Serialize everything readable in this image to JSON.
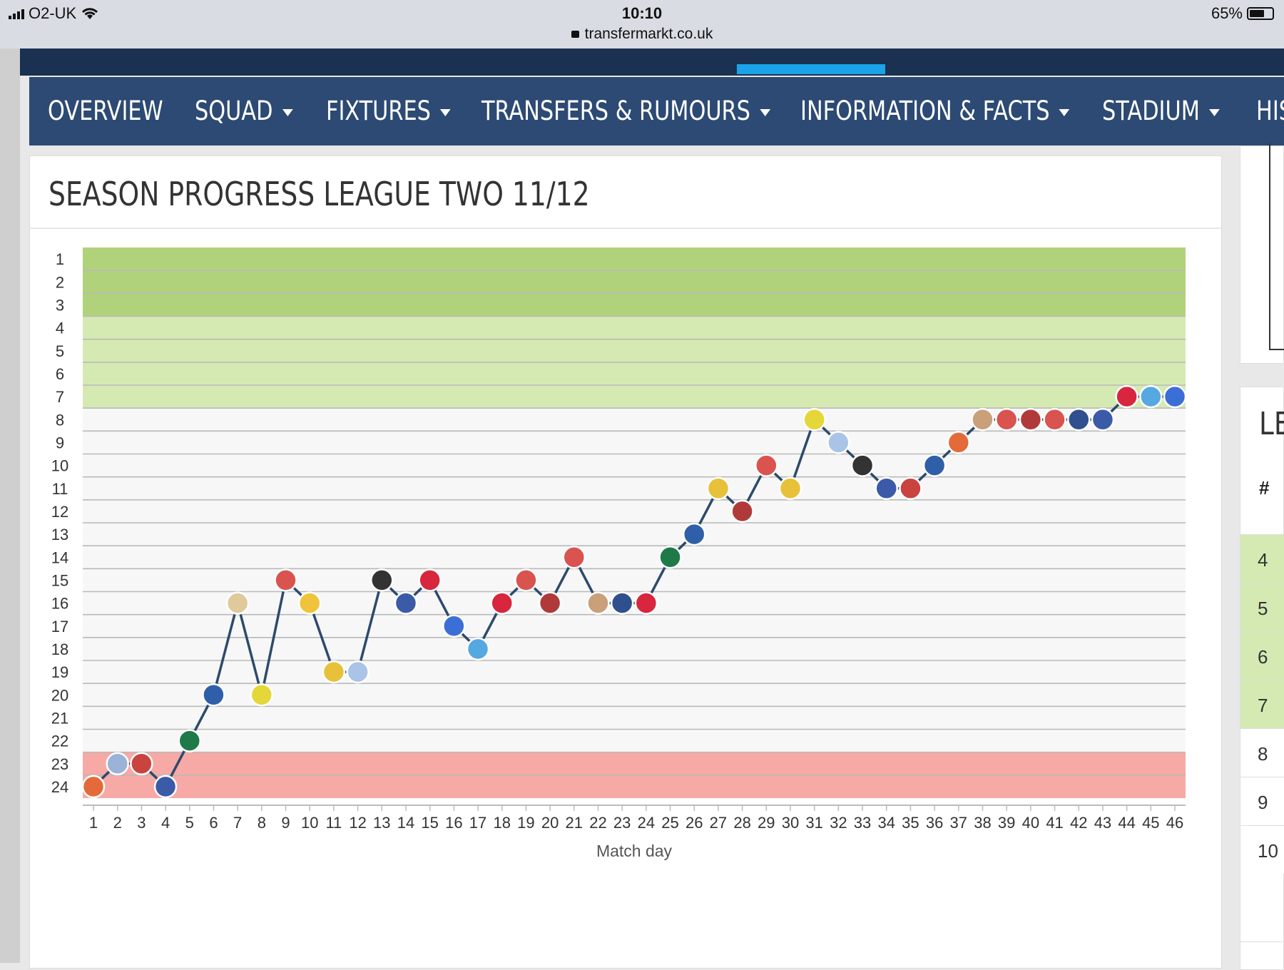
{
  "status_bar": {
    "carrier": "O2-UK",
    "time": "10:10",
    "url": "transfermarkt.co.uk",
    "battery": "65%",
    "battery_level": 0.65
  },
  "nav": {
    "items": [
      {
        "label": "OVERVIEW",
        "dropdown": false
      },
      {
        "label": "SQUAD",
        "dropdown": true
      },
      {
        "label": "FIXTURES",
        "dropdown": true
      },
      {
        "label": "TRANSFERS & RUMOURS",
        "dropdown": true
      },
      {
        "label": "INFORMATION & FACTS",
        "dropdown": true
      },
      {
        "label": "STADIUM",
        "dropdown": true
      },
      {
        "label": "HIS",
        "dropdown": false
      }
    ]
  },
  "card": {
    "title": "SEASON PROGRESS LEAGUE TWO 11/12"
  },
  "right_panel": {
    "title": "LE",
    "header": "#",
    "rows": [
      "4",
      "5",
      "6",
      "7",
      "8",
      "9",
      "10"
    ]
  },
  "colors": {
    "promotion": "#b0d27a",
    "playoff": "#d5eab2",
    "relegation": "#f7a9a5",
    "neutral": "#f7f7f7",
    "line": "#2d4a6b",
    "nav": "#2c4a73",
    "topnav": "#1a3151",
    "accent": "#1aa3e8"
  },
  "chart_data": {
    "type": "line",
    "title": "SEASON PROGRESS LEAGUE TWO 11/12",
    "xlabel": "Match day",
    "ylabel": "",
    "x": [
      1,
      2,
      3,
      4,
      5,
      6,
      7,
      8,
      9,
      10,
      11,
      12,
      13,
      14,
      15,
      16,
      17,
      18,
      19,
      20,
      21,
      22,
      23,
      24,
      25,
      26,
      27,
      28,
      29,
      30,
      31,
      32,
      33,
      34,
      35,
      36,
      37,
      38,
      39,
      40,
      41,
      42,
      43,
      44,
      45,
      46
    ],
    "y_ticks": [
      1,
      2,
      3,
      4,
      5,
      6,
      7,
      8,
      9,
      10,
      11,
      12,
      13,
      14,
      15,
      16,
      17,
      18,
      19,
      20,
      21,
      22,
      23,
      24
    ],
    "ylim": [
      24,
      1
    ],
    "xlim": [
      1,
      46
    ],
    "y_inverted": true,
    "grid": true,
    "zones": [
      {
        "from": 1,
        "to": 3,
        "color": "#b0d27a"
      },
      {
        "from": 4,
        "to": 7,
        "color": "#d5eab2"
      },
      {
        "from": 8,
        "to": 22,
        "color": "#f7f7f7"
      },
      {
        "from": 23,
        "to": 24,
        "color": "#f7a9a5"
      }
    ],
    "series": [
      {
        "values": [
          24,
          23,
          23,
          24,
          22,
          20,
          16,
          20,
          15,
          16,
          19,
          19,
          15,
          16,
          15,
          17,
          18,
          16,
          15,
          16,
          14,
          16,
          16,
          16,
          14,
          13,
          11,
          12,
          10,
          11,
          8,
          9,
          10,
          11,
          11,
          10,
          9,
          8,
          8,
          8,
          8,
          8,
          8,
          7,
          7,
          7
        ],
        "color": "#2d4a6b"
      }
    ],
    "marker_colors": [
      "#e46a3a",
      "#9ab3d6",
      "#c9433f",
      "#3b5aa8",
      "#1f7a4a",
      "#2f5fa8",
      "#e0c99a",
      "#e5d73a",
      "#d9534f",
      "#f0c43a",
      "#e8c13a",
      "#a9c4e6",
      "#333333",
      "#3b5aa8",
      "#d7263d",
      "#3b6fd6",
      "#56a8e0",
      "#d7263d",
      "#d9534f",
      "#b03a3a",
      "#d9534f",
      "#c9a07a",
      "#2f4f8f",
      "#d7263d",
      "#1f7a4a",
      "#2f5fa8",
      "#e8c13a",
      "#b03a3a",
      "#d9534f",
      "#e8c13a",
      "#e5d73a",
      "#a9c4e6",
      "#333333",
      "#3b5aa8",
      "#c9433f",
      "#2f5fa8",
      "#e46a3a",
      "#c9a07a",
      "#d9534f",
      "#b03a3a",
      "#d9534f",
      "#2f4f8f",
      "#3b5aa8",
      "#d7263d",
      "#56a8e0",
      "#3b6fd6"
    ]
  }
}
